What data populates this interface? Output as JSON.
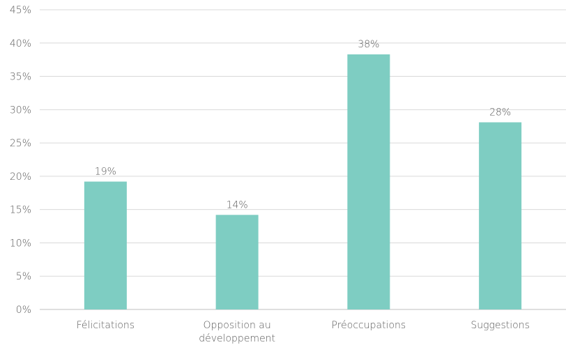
{
  "chart_data": {
    "type": "bar",
    "categories": [
      [
        "Félicitations"
      ],
      [
        "Opposition au",
        "développement"
      ],
      [
        "Préoccupations"
      ],
      [
        "Suggestions"
      ]
    ],
    "values": [
      19.2,
      14.2,
      38.3,
      28.1
    ],
    "data_labels": [
      "19%",
      "14%",
      "38%",
      "28%"
    ],
    "y_ticks": [
      "0%",
      "5%",
      "10%",
      "15%",
      "20%",
      "25%",
      "30%",
      "35%",
      "40%",
      "45%"
    ],
    "ylim": [
      0,
      45
    ],
    "grid": true,
    "legend": false,
    "title": "",
    "xlabel": "",
    "ylabel": "",
    "bar_color": "#7ecdc2",
    "grid_color": "#d9d9d9",
    "text_color": "#595959"
  }
}
